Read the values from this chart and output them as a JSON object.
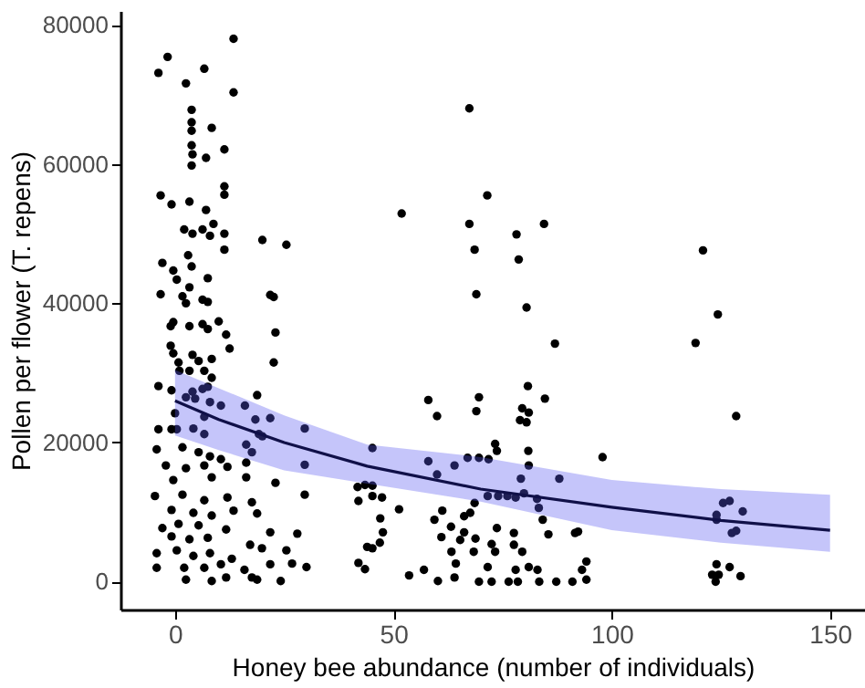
{
  "chart_data": {
    "type": "scatter",
    "xlabel": "Honey bee abundance (number of individuals)",
    "ylabel": "Pollen per flower (T. repens)",
    "xlim": [
      -12.5,
      158
    ],
    "ylim": [
      -4000,
      82000
    ],
    "xticks": [
      0,
      50,
      100,
      150
    ],
    "yticks": [
      0,
      20000,
      40000,
      60000,
      80000
    ],
    "grid": false,
    "marker": "circle",
    "series": [
      {
        "color": "#000000",
        "x": [
          13.4,
          -1.7,
          -3.8,
          6.7,
          2.5,
          13.4,
          3.8,
          3.8,
          8.4,
          3.8,
          3.8,
          11.3,
          4,
          7.1,
          3.8,
          11.3,
          11.3,
          -3.3,
          -0.8,
          3.3,
          7.1,
          8.8,
          2.1,
          6.3,
          11.3,
          4,
          8,
          20,
          25.5,
          11.3,
          -2.9,
          3,
          3.8,
          -0.4,
          0.4,
          7.5,
          3.3,
          -3.3,
          1.7,
          6.3,
          7.5,
          21.8,
          22.6,
          2.5,
          -0.4,
          -1,
          3.3,
          6.3,
          7.5,
          10,
          23,
          11.7,
          12.5,
          -1,
          -0.4,
          4,
          0.8,
          5.4,
          8.4,
          22.6,
          1,
          3.3,
          6.7,
          8.4,
          -3.8,
          -0.8,
          4,
          6.3,
          7.5,
          2.5,
          4.6,
          8,
          10.5,
          0,
          6.7,
          16,
          18.8,
          18.4,
          21.8,
          29.7,
          -3.8,
          -0.8,
          0.4,
          4.2,
          6.7,
          19.2,
          20,
          16.3,
          -4.2,
          1.7,
          5.4,
          8,
          10.5,
          17.6,
          -2.1,
          2.5,
          6.7,
          12,
          16.3,
          29.7,
          45.2,
          -0.4,
          8.4,
          16.3,
          23,
          43.5,
          -4.6,
          1.7,
          6.7,
          12,
          17.6,
          29.7,
          45.2,
          -0.8,
          4.2,
          8.4,
          13.4,
          18.8,
          0.8,
          5.4,
          11.7,
          -2.9,
          -0.8,
          3.3,
          7.5,
          17.2,
          21.8,
          28,
          46.9,
          -4.2,
          0.4,
          4.2,
          8,
          13,
          19.9,
          25.5,
          -4.2,
          2.1,
          6.7,
          10.5,
          15.9,
          21.8,
          26.8,
          30.1,
          43.5,
          2.5,
          8.4,
          11.7,
          17.6,
          18.8,
          24.2,
          67.4,
          71.5,
          51.9,
          67.4,
          84.5,
          78.2,
          68.6,
          120.9,
          78.7,
          69,
          124.3,
          80.5,
          87,
          119.2,
          80.8,
          58,
          69.6,
          84.7,
          60,
          69,
          79.5,
          81,
          79,
          80.5,
          128.5,
          73.3,
          73.7,
          97.9,
          58,
          60,
          64,
          67,
          69.6,
          71.8,
          80.9,
          81,
          88,
          79.2,
          71.6,
          74,
          76.1,
          78,
          79.9,
          82.9,
          83.3,
          68.6,
          67.6,
          125.5,
          127,
          130,
          124,
          124,
          127.5,
          128.5,
          41.8,
          45.2,
          42,
          47.4,
          51.3,
          47,
          61.2,
          59.4,
          66.2,
          63.2,
          66.2,
          73.7,
          77.6,
          84.2,
          47.6,
          61,
          65.3,
          68.8,
          72.5,
          85.5,
          91.6,
          92.3,
          44,
          45.2,
          63.3,
          68.4,
          73.3,
          77.6,
          79.5,
          42,
          57,
          53.6,
          64.3,
          71.6,
          78,
          81,
          83,
          94.2,
          93.2,
          94.2,
          60.2,
          64,
          69.6,
          72.5,
          76.4,
          78.5,
          83.4,
          87.3,
          91,
          124,
          127,
          123,
          124.5,
          129.5,
          123.8
        ],
        "values": [
          78000,
          75400,
          73100,
          73700,
          71600,
          70300,
          67800,
          66000,
          65200,
          64800,
          62700,
          62100,
          61400,
          60900,
          59800,
          56800,
          55600,
          55500,
          54200,
          54600,
          53400,
          51400,
          50600,
          50600,
          50000,
          50000,
          49700,
          49100,
          48400,
          47700,
          45800,
          46900,
          45300,
          44700,
          43400,
          43600,
          42300,
          41300,
          41000,
          40500,
          40200,
          41200,
          40900,
          40000,
          37300,
          36700,
          36700,
          37000,
          36300,
          37400,
          35800,
          35500,
          33500,
          33900,
          32800,
          32600,
          31500,
          31700,
          32000,
          31500,
          30300,
          30300,
          30300,
          29300,
          28100,
          27500,
          27300,
          27700,
          28000,
          26500,
          26300,
          25800,
          25300,
          24200,
          23700,
          25300,
          26800,
          23300,
          23500,
          22000,
          21900,
          21900,
          21900,
          22000,
          21200,
          21200,
          20900,
          19700,
          19000,
          19300,
          18600,
          18000,
          17600,
          18600,
          16700,
          16300,
          16700,
          16500,
          17100,
          16800,
          19200,
          14600,
          15000,
          15000,
          14200,
          13900,
          12300,
          12500,
          11700,
          12100,
          11400,
          12500,
          12300,
          10300,
          9900,
          9500,
          10200,
          9800,
          8300,
          8100,
          7500,
          7700,
          6500,
          6100,
          6300,
          5300,
          7100,
          6900,
          5600,
          4100,
          4500,
          3700,
          4100,
          3300,
          4800,
          4500,
          2000,
          2000,
          2000,
          2500,
          1700,
          2500,
          2600,
          2100,
          1800,
          300,
          100,
          600,
          600,
          300,
          100,
          68000,
          55500,
          52900,
          51400,
          51400,
          49900,
          47700,
          47600,
          46300,
          41300,
          38400,
          39400,
          34200,
          34300,
          28100,
          26100,
          26500,
          26300,
          23800,
          24500,
          24900,
          24300,
          23200,
          22900,
          23800,
          19800,
          18800,
          17900,
          17300,
          15400,
          16700,
          17800,
          17800,
          17600,
          18800,
          16700,
          14800,
          14800,
          12300,
          12300,
          12300,
          12100,
          12700,
          11900,
          10600,
          11300,
          9900,
          11300,
          11600,
          10100,
          9600,
          8900,
          7000,
          7300,
          13600,
          13800,
          11600,
          12100,
          10400,
          9100,
          10200,
          8900,
          9400,
          7900,
          7100,
          7700,
          7000,
          8900,
          7100,
          6400,
          6000,
          6200,
          5400,
          6800,
          7000,
          7200,
          5000,
          4800,
          4300,
          4300,
          4300,
          5300,
          4300,
          2700,
          1700,
          900,
          2600,
          2100,
          1700,
          2100,
          1700,
          2900,
          1700,
          300,
          100,
          600,
          0,
          0,
          0,
          0,
          0,
          0,
          0,
          2500,
          2100,
          1000,
          1000,
          800,
          0
        ]
      },
      {
        "type": "line",
        "color": "#101048",
        "line_style": "solid",
        "marker": "none",
        "x": [
          0,
          10,
          25,
          44,
          70,
          100,
          125,
          150
        ],
        "values": [
          26000,
          23300,
          20000,
          16600,
          13300,
          10700,
          8800,
          7400
        ],
        "lower": [
          21000,
          18900,
          16000,
          14100,
          11500,
          7400,
          5600,
          4300
        ],
        "upper": [
          30400,
          27800,
          23900,
          19700,
          17900,
          14600,
          13300,
          12500
        ]
      }
    ]
  }
}
